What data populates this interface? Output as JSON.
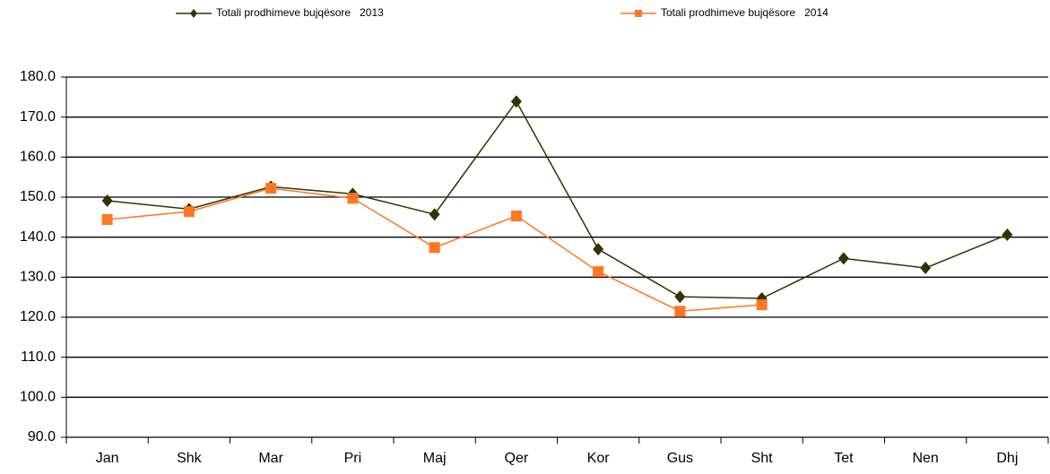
{
  "chart_data": {
    "type": "line",
    "categories": [
      "Jan",
      "Shk",
      "Mar",
      "Pri",
      "Maj",
      "Qer",
      "Kor",
      "Gus",
      "Sht",
      "Tet",
      "Nen",
      "Dhj"
    ],
    "series": [
      {
        "name": "Totali prodhimeve bujqësore   2013",
        "color": "#333300",
        "marker": "diamond",
        "values": [
          149.1,
          147.0,
          152.6,
          150.8,
          145.7,
          173.9,
          137.0,
          125.1,
          124.7,
          134.7,
          132.3,
          140.6
        ]
      },
      {
        "name": "Totali prodhimeve bujqësore   2014",
        "color": "#ff7722",
        "marker": "square",
        "values": [
          144.4,
          146.4,
          152.2,
          149.7,
          137.4,
          145.3,
          131.4,
          121.5,
          123.1,
          null,
          null,
          null
        ]
      }
    ],
    "ylim": [
      90,
      180
    ],
    "yticks": [
      {
        "value": 90,
        "label": "90.0"
      },
      {
        "value": 100,
        "label": "100.0"
      },
      {
        "value": 110,
        "label": "110.0"
      },
      {
        "value": 120,
        "label": "120.0"
      },
      {
        "value": 130,
        "label": "130.0"
      },
      {
        "value": 140,
        "label": "140.0"
      },
      {
        "value": 150,
        "label": "150.0"
      },
      {
        "value": 160,
        "label": "160.0"
      },
      {
        "value": 170,
        "label": "170.0"
      },
      {
        "value": 180,
        "label": "180.0"
      }
    ],
    "grid": true,
    "legend": "top"
  }
}
